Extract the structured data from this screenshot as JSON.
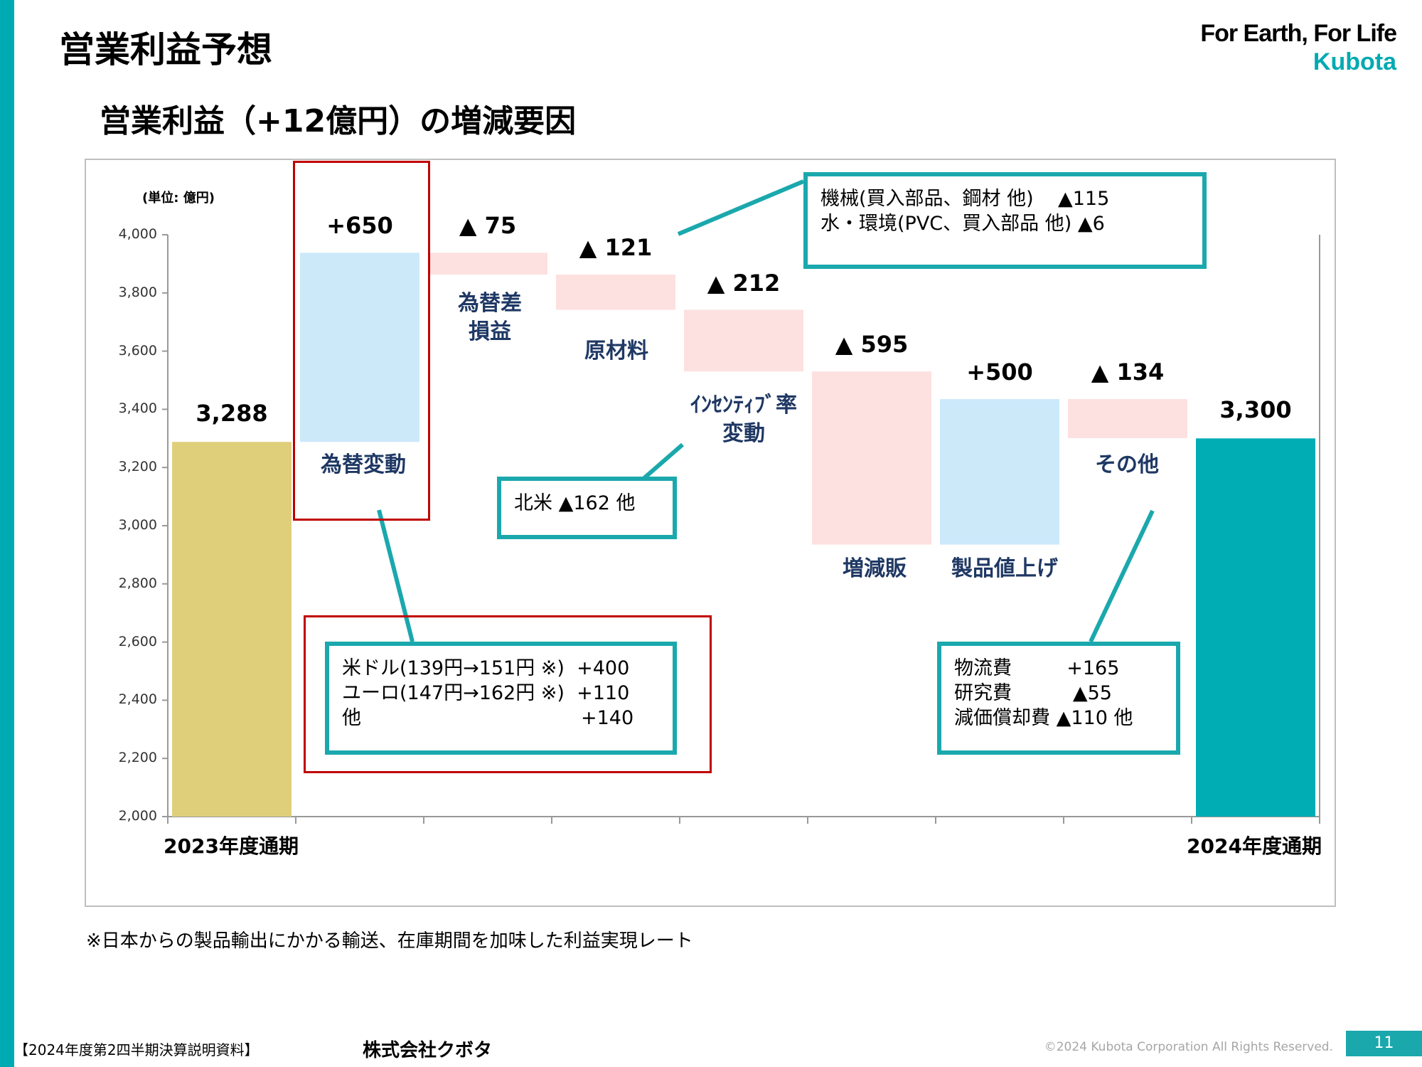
{
  "title": "営業利益予想",
  "subtitle": "営業利益（+12億円）の増減要因",
  "logo": {
    "slogan": "For Earth, For Life",
    "brand": "Kubota"
  },
  "colors": {
    "accent": "#00aab2",
    "start": "#dfcf7b",
    "end": "#00adb5",
    "increase": "#cce9fa",
    "decrease": "#fde0e0",
    "category_label": "#1f3864"
  },
  "chart_data": {
    "type": "waterfall",
    "unit_label": "(単位: 億円)",
    "ylim": [
      2000,
      4000
    ],
    "yticks": [
      "2,000",
      "2,200",
      "2,400",
      "2,600",
      "2,800",
      "3,000",
      "3,200",
      "3,400",
      "3,600",
      "3,800",
      "4,000"
    ],
    "grid": false,
    "steps": [
      {
        "label": "2023年度通期",
        "kind": "total",
        "value": 3288,
        "data_label": "3,288"
      },
      {
        "label": "為替変動",
        "kind": "delta",
        "value": 650,
        "data_label": "+650"
      },
      {
        "label": "為替差損益",
        "kind": "delta",
        "value": -75,
        "data_label": "▲ 75"
      },
      {
        "label": "原材料",
        "kind": "delta",
        "value": -121,
        "data_label": "▲ 121"
      },
      {
        "label": "ｲﾝｾﾝﾃｨﾌﾞ率変動",
        "kind": "delta",
        "value": -212,
        "data_label": "▲ 212"
      },
      {
        "label": "増減販",
        "kind": "delta",
        "value": -595,
        "data_label": "▲ 595"
      },
      {
        "label": "製品値上げ",
        "kind": "delta",
        "value": 500,
        "data_label": "+500"
      },
      {
        "label": "その他",
        "kind": "delta",
        "value": -134,
        "data_label": "▲ 134"
      },
      {
        "label": "2024年度通期",
        "kind": "total",
        "value": 3300,
        "data_label": "3,300"
      }
    ],
    "category_text": {
      "fx": "為替変動",
      "fxgain1": "為替差",
      "fxgain2": "損益",
      "raw": "原材料",
      "inc1": "ｲﾝｾﾝﾃｨﾌﾞ率",
      "inc2": "変動",
      "vol": "増減販",
      "price": "製品値上げ",
      "other": "その他",
      "start": "2023年度通期",
      "end": "2024年度通期"
    }
  },
  "callouts": {
    "fx": "米ドル(139円→151円 ※)  +400\nユーロ(147円→162円 ※)  +110\n他                                    +140",
    "incentive": "北米 ▲162 他",
    "raw": "機械(買入部品、鋼材 他)    ▲115\n水・環境(PVC、買入部品 他) ▲6",
    "other": "物流費         +165\n研究費          ▲55\n減価償却費 ▲110 他"
  },
  "footnote": "※日本からの製品輸出にかかる輸送、在庫期間を加味した利益実現レート",
  "footer": {
    "doc": "【2024年度第2四半期決算説明資料】",
    "company": "株式会社クボタ",
    "copyright": "©2024 Kubota Corporation All Rights Reserved.",
    "page": "11"
  }
}
